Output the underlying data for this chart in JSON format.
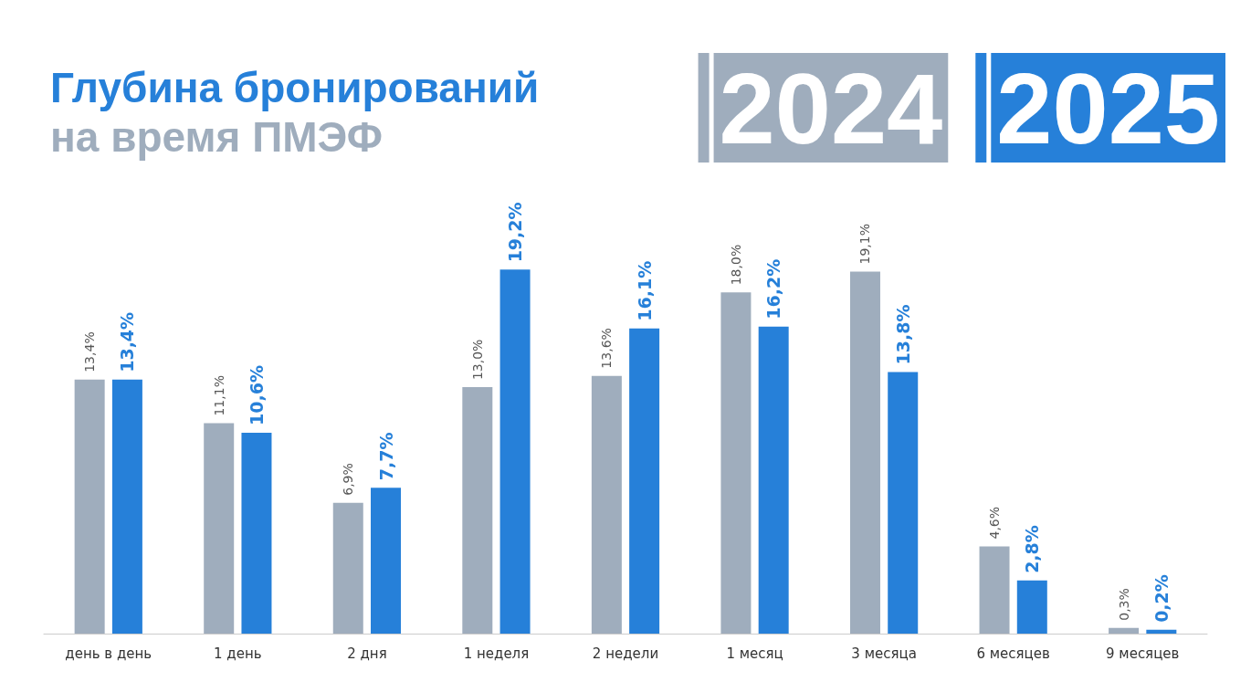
{
  "chart_data": {
    "type": "bar",
    "title": "Глубина бронирований",
    "subtitle": "на время ПМЭФ",
    "categories": [
      "день в день",
      "1 день",
      "2 дня",
      "1 неделя",
      "2 недели",
      "1 месяц",
      "3 месяца",
      "6 месяцев",
      "9 месяцев"
    ],
    "series": [
      {
        "name": "2024",
        "color": "#9fadbd",
        "values": [
          13.4,
          11.1,
          6.9,
          13.0,
          13.6,
          18.0,
          19.1,
          4.6,
          0.3
        ],
        "value_labels": [
          "13,4%",
          "11,1%",
          "6,9%",
          "13,0%",
          "13,6%",
          "18,0%",
          "19,1%",
          "4,6%",
          "0,3%"
        ]
      },
      {
        "name": "2025",
        "color": "#2680d9",
        "values": [
          13.4,
          10.6,
          7.7,
          19.2,
          16.1,
          16.2,
          13.8,
          2.8,
          0.2
        ],
        "value_labels": [
          "13,4%",
          "10,6%",
          "7,7%",
          "19,2%",
          "16,1%",
          "16,2%",
          "13,8%",
          "2,8%",
          "0,2%"
        ]
      }
    ],
    "legend": "top right"
  }
}
